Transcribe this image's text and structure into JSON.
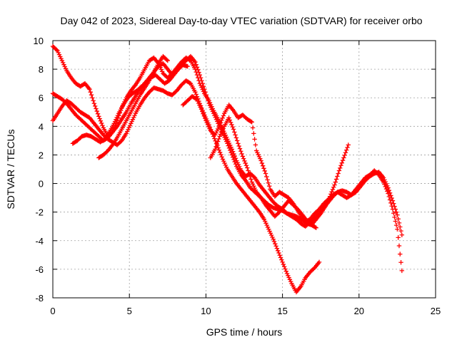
{
  "chart_data": {
    "type": "scatter",
    "title": "Day 042 of 2023, Sidereal Day-to-day VTEC variation (SDTVAR) for receiver orbo",
    "xlabel": "GPS time / hours",
    "ylabel": "SDTVAR / TECUs",
    "xlim": [
      0,
      25
    ],
    "ylim": [
      -8,
      10
    ],
    "xticks": [
      0,
      5,
      10,
      15,
      20,
      25
    ],
    "yticks": [
      -8,
      -6,
      -4,
      -2,
      0,
      2,
      4,
      6,
      8,
      10
    ],
    "grid": true,
    "marker": "+",
    "color": "#ff0000",
    "series": [
      {
        "x": [
          0.0,
          0.3,
          0.6,
          0.9,
          1.2,
          1.5,
          1.8,
          2.1,
          2.4,
          2.7,
          3.0,
          3.3,
          3.6,
          3.9,
          4.2,
          4.5,
          4.8,
          5.1,
          5.4,
          5.7,
          6.0,
          6.3,
          6.6,
          6.9,
          7.2,
          7.5,
          7.8,
          8.1,
          8.4,
          8.7,
          9.0,
          9.3,
          9.6,
          9.9,
          10.2,
          10.5,
          10.8,
          11.1,
          11.4,
          11.7,
          12.0,
          12.3,
          12.6,
          12.9,
          13.2,
          13.5,
          13.8,
          14.1,
          14.4,
          14.7,
          15.0,
          15.3,
          15.6,
          15.9,
          16.2,
          16.5,
          16.8,
          17.1,
          17.4,
          17.7,
          18.0,
          18.3,
          18.6,
          18.9,
          19.2,
          19.5,
          19.8,
          20.1,
          20.4,
          20.7,
          21.0,
          21.3,
          21.6,
          21.9,
          22.2,
          22.5,
          22.8
        ],
        "y": [
          9.6,
          9.3,
          8.6,
          7.9,
          7.4,
          7.0,
          6.8,
          7.0,
          6.6,
          5.6,
          4.7,
          3.9,
          3.3,
          3.6,
          4.4,
          5.3,
          6.0,
          6.5,
          6.9,
          7.4,
          8.0,
          8.6,
          8.8,
          8.4,
          7.7,
          7.4,
          7.7,
          8.1,
          8.5,
          8.8,
          8.6,
          8.0,
          7.0,
          6.3,
          5.8,
          5.1,
          4.5,
          3.8,
          3.1,
          2.4,
          1.6,
          0.9,
          0.5,
          0.7,
          0.4,
          -0.1,
          -0.5,
          -0.9,
          -1.3,
          -1.6,
          -1.8,
          -2.1,
          -2.3,
          -2.5,
          -2.8,
          -3.0,
          -2.7,
          -2.4,
          -2.1,
          -1.7,
          -1.3,
          -0.9,
          -0.6,
          -0.5,
          -0.6,
          -0.8,
          -0.6,
          -0.2,
          0.2,
          0.5,
          0.7,
          0.8,
          0.4,
          -0.3,
          -1.2,
          -2.2,
          -3.6
        ]
      },
      {
        "x": [
          0.0,
          0.3,
          0.6,
          0.9,
          1.2,
          1.5,
          1.8,
          2.1,
          2.4,
          2.7,
          3.0,
          3.3,
          3.6,
          3.9,
          4.2,
          4.5,
          4.8,
          5.1,
          5.4,
          5.7,
          6.0,
          6.3,
          6.6,
          6.9,
          7.2,
          7.5,
          7.8,
          8.1,
          8.4,
          8.7,
          9.0,
          9.3,
          9.6,
          9.9,
          10.2,
          10.5,
          10.8,
          11.1,
          11.4,
          11.7,
          12.0,
          12.3,
          12.6,
          12.9,
          13.2,
          13.5,
          13.8,
          14.1,
          14.4,
          14.7,
          15.0,
          15.3,
          15.6,
          15.9,
          16.2,
          16.5,
          16.8,
          17.1,
          17.4,
          17.7,
          18.0,
          18.3,
          18.6,
          18.9,
          19.2,
          19.5,
          19.8,
          20.1,
          20.4,
          20.7,
          21.0,
          21.3,
          21.6,
          21.9,
          22.2,
          22.5,
          22.8
        ],
        "y": [
          6.3,
          6.1,
          5.9,
          5.6,
          5.2,
          4.8,
          4.5,
          4.2,
          3.9,
          3.6,
          3.3,
          3.0,
          3.2,
          3.6,
          4.0,
          4.5,
          5.0,
          5.6,
          6.1,
          6.6,
          7.0,
          7.4,
          7.8,
          8.2,
          8.4,
          8.0,
          7.6,
          7.9,
          8.3,
          8.6,
          8.9,
          8.5,
          7.6,
          6.6,
          5.6,
          4.9,
          4.2,
          3.5,
          2.8,
          2.0,
          1.2,
          0.6,
          0.2,
          -0.3,
          -0.6,
          -0.9,
          -1.2,
          -1.5,
          -1.7,
          -1.8,
          -1.9,
          -2.1,
          -2.2,
          -2.3,
          -2.5,
          -2.7,
          -2.5,
          -2.1,
          -1.8,
          -1.4,
          -1.1,
          -0.8,
          -0.6,
          -0.8,
          -1.0,
          -0.8,
          -0.4,
          0.0,
          0.4,
          0.6,
          0.9,
          0.6,
          0.1,
          -0.7,
          -1.8,
          -3.2,
          -6.1
        ]
      },
      {
        "x": [
          0.0,
          0.3,
          0.6,
          0.9,
          1.2,
          1.5,
          1.8,
          2.1,
          2.4,
          2.7,
          3.0,
          3.3,
          3.6,
          3.9,
          4.2,
          4.5,
          4.8,
          5.1,
          5.4,
          5.7,
          6.0,
          6.3,
          6.6,
          6.9,
          7.2,
          7.5,
          7.8,
          8.1,
          8.4,
          8.7,
          9.0,
          9.3,
          9.6,
          9.9,
          10.2,
          10.5,
          10.8,
          11.1,
          11.4,
          11.7,
          12.0,
          12.3,
          12.6,
          12.9,
          13.2,
          13.5,
          13.8,
          14.1,
          14.4,
          14.7,
          15.0,
          15.3,
          15.6,
          15.9,
          16.2,
          16.5,
          16.8,
          17.1,
          17.4
        ],
        "y": [
          4.4,
          4.9,
          5.4,
          5.8,
          5.6,
          5.3,
          5.0,
          4.8,
          4.6,
          4.2,
          3.8,
          3.4,
          3.1,
          2.9,
          2.7,
          3.0,
          3.5,
          4.2,
          4.9,
          5.5,
          6.0,
          6.4,
          6.7,
          6.6,
          6.5,
          6.3,
          6.2,
          6.5,
          6.9,
          7.2,
          7.0,
          6.4,
          5.6,
          4.8,
          4.1,
          3.3,
          2.5,
          1.7,
          1.0,
          0.5,
          0.0,
          -0.4,
          -0.8,
          -1.2,
          -1.6,
          -2.0,
          -2.5,
          -3.2,
          -3.9,
          -4.7,
          -5.5,
          -6.3,
          -7.0,
          -7.6,
          -7.2,
          -6.6,
          -6.2,
          -5.9,
          -5.5
        ]
      },
      {
        "x": [
          1.3,
          1.6,
          1.9,
          2.2,
          2.5,
          2.8,
          3.1,
          3.4,
          3.7,
          4.0,
          4.3,
          4.6,
          4.9,
          5.2,
          5.5,
          5.8,
          6.1,
          6.4,
          6.7,
          7.0,
          7.3,
          7.6,
          7.9,
          8.2,
          8.5,
          8.8
        ],
        "y": [
          2.8,
          3.0,
          3.3,
          3.4,
          3.3,
          3.1,
          2.9,
          3.1,
          3.6,
          4.2,
          4.9,
          5.5,
          6.0,
          6.3,
          6.5,
          6.8,
          7.1,
          7.4,
          7.6,
          7.3,
          7.0,
          7.2,
          7.6,
          8.0,
          8.3,
          8.2
        ]
      },
      {
        "x": [
          3.0,
          3.3,
          3.6,
          3.9,
          4.2,
          4.5,
          4.8,
          5.1,
          5.4,
          5.7,
          6.0,
          6.3,
          6.6,
          6.9,
          7.2,
          7.5
        ],
        "y": [
          1.8,
          2.0,
          2.3,
          2.7,
          3.2,
          3.8,
          4.4,
          5.0,
          5.6,
          6.2,
          6.7,
          7.2,
          7.8,
          8.4,
          8.9,
          8.6
        ]
      },
      {
        "x": [
          8.5,
          8.8,
          9.1,
          9.4,
          9.7,
          10.0,
          10.3,
          10.6,
          10.9,
          11.2,
          11.5,
          11.8,
          12.1,
          12.4,
          12.7,
          13.0,
          13.3,
          13.6,
          13.9,
          14.2,
          14.5,
          14.8,
          15.1,
          15.4,
          15.7,
          16.0,
          16.3,
          16.6,
          16.9,
          17.2,
          17.5,
          17.8,
          18.1,
          18.4,
          18.7,
          19.0,
          19.3
        ],
        "y": [
          5.5,
          5.8,
          6.1,
          5.9,
          5.2,
          4.4,
          3.7,
          3.4,
          4.1,
          4.9,
          5.5,
          5.1,
          4.6,
          4.8,
          4.5,
          4.3,
          2.3,
          1.6,
          0.7,
          -0.4,
          -0.9,
          -0.6,
          -0.8,
          -1.0,
          -1.4,
          -1.9,
          -2.4,
          -2.8,
          -2.9,
          -2.5,
          -2.1,
          -1.6,
          -0.9,
          -0.1,
          0.9,
          1.8,
          2.7
        ]
      },
      {
        "x": [
          10.3,
          10.6,
          10.9,
          11.2,
          11.5,
          11.8,
          12.1,
          12.4,
          12.7,
          13.0,
          13.3,
          13.6,
          13.9,
          14.2,
          14.5,
          14.8,
          15.1,
          15.4,
          15.7,
          16.0,
          16.3,
          16.6,
          16.9,
          17.2
        ],
        "y": [
          1.8,
          2.4,
          3.3,
          4.0,
          4.6,
          3.8,
          2.8,
          1.9,
          1.1,
          0.1,
          -0.6,
          -1.0,
          -1.5,
          -1.9,
          -2.3,
          -2.0,
          -1.6,
          -1.2,
          -1.5,
          -1.8,
          -2.2,
          -2.6,
          -2.9,
          -3.1
        ]
      }
    ]
  }
}
